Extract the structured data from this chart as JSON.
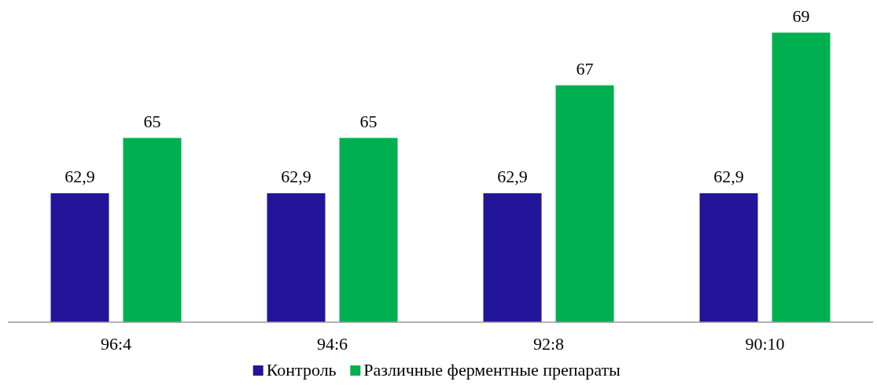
{
  "chart_data": {
    "type": "bar",
    "categories": [
      "96:4",
      "94:6",
      "92:8",
      "90:10"
    ],
    "ylim": [
      58,
      70.24
    ],
    "legend": "bottom",
    "grid": false,
    "series": [
      {
        "name": "Контроль",
        "color": "#231599",
        "values": [
          62.9,
          62.9,
          62.9,
          62.9
        ],
        "value_labels": [
          "62,9",
          "62,9",
          "62,9",
          "62,9"
        ]
      },
      {
        "name": "Различные ферментные препараты",
        "color": "#00b050",
        "values": [
          65,
          65,
          67,
          69
        ],
        "value_labels": [
          "65",
          "65",
          "67",
          "69"
        ]
      }
    ]
  }
}
